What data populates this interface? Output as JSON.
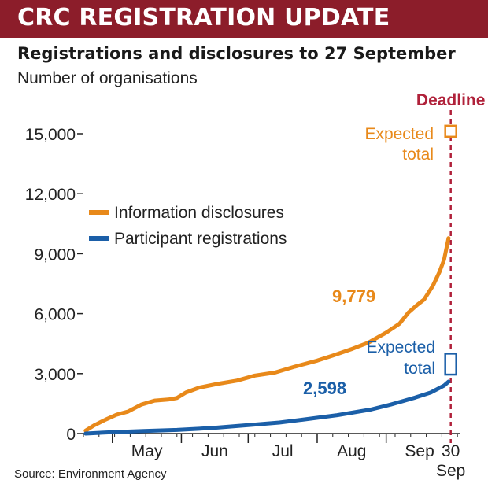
{
  "banner": {
    "title": "CRC REGISTRATION UPDATE"
  },
  "colors": {
    "banner": "#8c1d2a",
    "orange": "#e8891a",
    "blue": "#1b5fa8",
    "deadline": "#b0213a"
  },
  "chart_data": {
    "type": "line",
    "title": "Registrations and disclosures to 27 September",
    "ylabel": "Number of organisations",
    "xlabel": "",
    "ylim": [
      0,
      15000
    ],
    "yticks": [
      0,
      3000,
      6000,
      9000,
      12000,
      15000
    ],
    "ytick_labels": [
      "0",
      "3,000",
      "6,000",
      "9,000",
      "12,000",
      "15,000"
    ],
    "xlim": [
      "2010-04-18",
      "2010-10-04"
    ],
    "xticks": [
      {
        "date": "2010-05-01",
        "label": "May"
      },
      {
        "date": "2010-06-01",
        "label": "Jun"
      },
      {
        "date": "2010-07-01",
        "label": "Jul"
      },
      {
        "date": "2010-08-01",
        "label": "Aug"
      },
      {
        "date": "2010-09-01",
        "label": "Sep"
      }
    ],
    "deadline": {
      "date": "2010-09-30",
      "label": "Deadline",
      "tick_label_line1": "30",
      "tick_label_line2": "Sep"
    },
    "legend": {
      "placement": "upper-left"
    },
    "series": [
      {
        "name": "Information disclosures",
        "color": "#e8891a",
        "end_label": "9,779",
        "expected_total_label_line1": "Expected",
        "expected_total_label_line2": "total",
        "expected_total_range": [
          14850,
          15400
        ],
        "points": [
          [
            "2010-04-19",
            150
          ],
          [
            "2010-04-23",
            420
          ],
          [
            "2010-04-28",
            700
          ],
          [
            "2010-05-03",
            950
          ],
          [
            "2010-05-08",
            1100
          ],
          [
            "2010-05-14",
            1450
          ],
          [
            "2010-05-20",
            1650
          ],
          [
            "2010-05-26",
            1700
          ],
          [
            "2010-05-30",
            1780
          ],
          [
            "2010-06-03",
            2050
          ],
          [
            "2010-06-09",
            2300
          ],
          [
            "2010-06-17",
            2480
          ],
          [
            "2010-06-26",
            2650
          ],
          [
            "2010-07-04",
            2900
          ],
          [
            "2010-07-13",
            3050
          ],
          [
            "2010-07-22",
            3350
          ],
          [
            "2010-08-01",
            3650
          ],
          [
            "2010-08-08",
            3900
          ],
          [
            "2010-08-17",
            4250
          ],
          [
            "2010-08-24",
            4550
          ],
          [
            "2010-09-01",
            5050
          ],
          [
            "2010-09-07",
            5500
          ],
          [
            "2010-09-11",
            6050
          ],
          [
            "2010-09-15",
            6450
          ],
          [
            "2010-09-18",
            6700
          ],
          [
            "2010-09-22",
            7400
          ],
          [
            "2010-09-25",
            8100
          ],
          [
            "2010-09-27",
            8700
          ],
          [
            "2010-09-29",
            9779
          ]
        ]
      },
      {
        "name": "Participant registrations",
        "color": "#1b5fa8",
        "end_label": "2,598",
        "expected_total_label_line1": "Expected",
        "expected_total_label_line2": "total",
        "expected_total_range": [
          2950,
          4000
        ],
        "points": [
          [
            "2010-04-19",
            0
          ],
          [
            "2010-05-01",
            70
          ],
          [
            "2010-05-15",
            130
          ],
          [
            "2010-05-30",
            180
          ],
          [
            "2010-06-15",
            280
          ],
          [
            "2010-07-01",
            420
          ],
          [
            "2010-07-15",
            550
          ],
          [
            "2010-07-25",
            690
          ],
          [
            "2010-08-10",
            920
          ],
          [
            "2010-08-25",
            1200
          ],
          [
            "2010-09-03",
            1450
          ],
          [
            "2010-09-14",
            1800
          ],
          [
            "2010-09-21",
            2050
          ],
          [
            "2010-09-27",
            2400
          ],
          [
            "2010-09-29",
            2598
          ]
        ]
      }
    ],
    "source": "Source: Environment Agency"
  }
}
